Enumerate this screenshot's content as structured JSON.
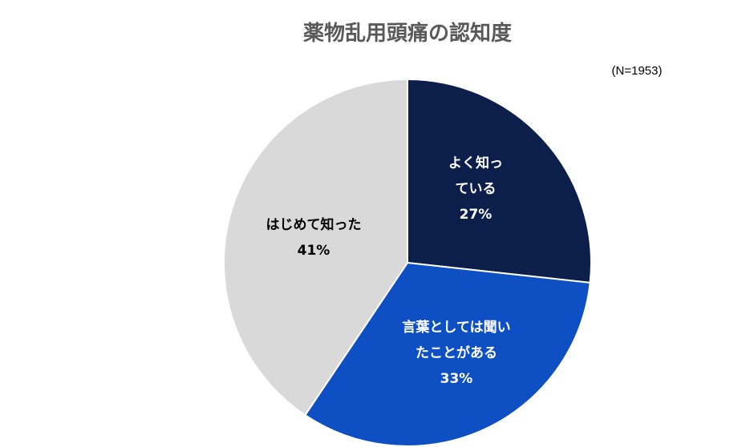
{
  "chart_data": {
    "type": "pie",
    "title": "薬物乱用頭痛の認知度",
    "note": "(N=1953)",
    "start_angle_deg": 0,
    "direction": "clockwise",
    "slices": [
      {
        "label_lines": [
          "よく知っ",
          "ている"
        ],
        "value": 27,
        "value_label": "27%",
        "color": "#0c1e4a",
        "text_color": "#ffffff"
      },
      {
        "label_lines": [
          "言葉としては聞い",
          "たことがある"
        ],
        "value": 33,
        "value_label": "33%",
        "color": "#0e50c3",
        "text_color": "#ffffff"
      },
      {
        "label_lines": [
          "はじめて知った"
        ],
        "value": 41,
        "value_label": "41%",
        "color": "#d9d9d9",
        "text_color": "#000000"
      }
    ]
  }
}
